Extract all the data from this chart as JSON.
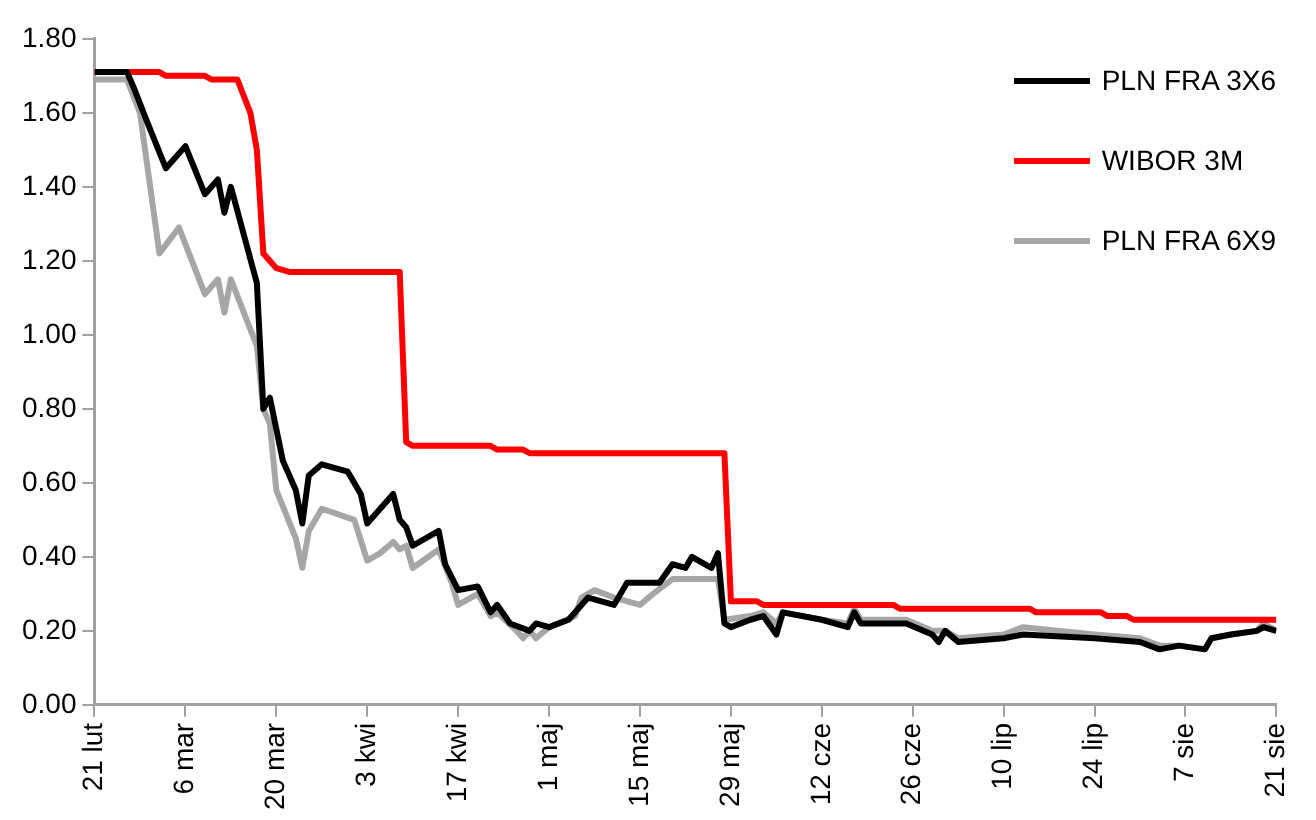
{
  "chart_data": {
    "type": "line",
    "xlim": [
      "--02-21",
      "--08-21"
    ],
    "xticks": [
      {
        "value": "--02-21",
        "label": "21 lut"
      },
      {
        "value": "--03-06",
        "label": "6 mar"
      },
      {
        "value": "--03-20",
        "label": "20 mar"
      },
      {
        "value": "--04-03",
        "label": "3 kwi"
      },
      {
        "value": "--04-17",
        "label": "17 kwi"
      },
      {
        "value": "--05-01",
        "label": "1 maj"
      },
      {
        "value": "--05-15",
        "label": "15 maj"
      },
      {
        "value": "--05-29",
        "label": "29 maj"
      },
      {
        "value": "--06-12",
        "label": "12 cze"
      },
      {
        "value": "--06-26",
        "label": "26 cze"
      },
      {
        "value": "--07-10",
        "label": "10 lip"
      },
      {
        "value": "--07-24",
        "label": "24 lip"
      },
      {
        "value": "--08-07",
        "label": "7 sie"
      },
      {
        "value": "--08-21",
        "label": "21 sie"
      }
    ],
    "ylim": [
      0,
      1.8
    ],
    "yticks": [
      {
        "value": 0,
        "label": "0.00"
      },
      {
        "value": 0.2,
        "label": "0.20"
      },
      {
        "value": 0.4,
        "label": "0.40"
      },
      {
        "value": 0.6,
        "label": "0.60"
      },
      {
        "value": 0.8,
        "label": "0.80"
      },
      {
        "value": 1.0,
        "label": "1.00"
      },
      {
        "value": 1.2,
        "label": "1.20"
      },
      {
        "value": 1.4,
        "label": "1.40"
      },
      {
        "value": 1.6,
        "label": "1.60"
      },
      {
        "value": 1.8,
        "label": "1.80"
      }
    ],
    "grid": false,
    "legend": "top right",
    "marker": "none",
    "line_style": "solid",
    "series": [
      {
        "name": "PLN FRA 3X6",
        "color": "#000000",
        "x": [
          "--02-21",
          "--02-26",
          "--02-27",
          "--02-29",
          "--03-03",
          "--03-06",
          "--03-09",
          "--03-11",
          "--03-12",
          "--03-13",
          "--03-17",
          "--03-18",
          "--03-19",
          "--03-21",
          "--03-23",
          "--03-24",
          "--03-25",
          "--03-27",
          "--03-31",
          "--04-02",
          "--04-03",
          "--04-07",
          "--04-08",
          "--04-09",
          "--04-10",
          "--04-14",
          "--04-15",
          "--04-17",
          "--04-20",
          "--04-22",
          "--04-23",
          "--04-25",
          "--04-28",
          "--04-29",
          "--05-01",
          "--05-04",
          "--05-07",
          "--05-11",
          "--05-13",
          "--05-18",
          "--05-20",
          "--05-22",
          "--05-23",
          "--05-26",
          "--05-27",
          "--05-28",
          "--05-29",
          "--06-01",
          "--06-03",
          "--06-05",
          "--06-06",
          "--06-12",
          "--06-16",
          "--06-17",
          "--06-18",
          "--06-25",
          "--06-29",
          "--06-30",
          "--07-01",
          "--07-03",
          "--07-10",
          "--07-13",
          "--07-24",
          "--07-31",
          "--08-03",
          "--08-06",
          "--08-10",
          "--08-11",
          "--08-14",
          "--08-18",
          "--08-19",
          "--08-21"
        ],
        "values": [
          1.71,
          1.71,
          1.67,
          1.58,
          1.45,
          1.51,
          1.38,
          1.42,
          1.33,
          1.4,
          1.14,
          0.8,
          0.83,
          0.66,
          0.58,
          0.49,
          0.62,
          0.65,
          0.63,
          0.57,
          0.49,
          0.57,
          0.5,
          0.48,
          0.43,
          0.47,
          0.38,
          0.31,
          0.32,
          0.25,
          0.27,
          0.22,
          0.2,
          0.22,
          0.21,
          0.23,
          0.29,
          0.27,
          0.33,
          0.33,
          0.38,
          0.37,
          0.4,
          0.37,
          0.41,
          0.22,
          0.21,
          0.23,
          0.24,
          0.19,
          0.25,
          0.23,
          0.21,
          0.25,
          0.22,
          0.22,
          0.19,
          0.17,
          0.2,
          0.17,
          0.18,
          0.19,
          0.18,
          0.17,
          0.15,
          0.16,
          0.15,
          0.18,
          0.19,
          0.2,
          0.21,
          0.2
        ]
      },
      {
        "name": "WIBOR 3M",
        "color": "#ff0000",
        "x": [
          "--02-21",
          "--03-02",
          "--03-03",
          "--03-09",
          "--03-10",
          "--03-14",
          "--03-16",
          "--03-17",
          "--03-18",
          "--03-20",
          "--03-22",
          "--04-08",
          "--04-09",
          "--04-10",
          "--04-22",
          "--04-23",
          "--04-27",
          "--04-28",
          "--05-28",
          "--05-29",
          "--06-02",
          "--06-03",
          "--06-23",
          "--06-24",
          "--07-14",
          "--07-15",
          "--07-25",
          "--07-26",
          "--07-29",
          "--07-30",
          "--08-21"
        ],
        "values": [
          1.71,
          1.71,
          1.7,
          1.7,
          1.69,
          1.69,
          1.6,
          1.5,
          1.22,
          1.18,
          1.17,
          1.17,
          0.71,
          0.7,
          0.7,
          0.69,
          0.69,
          0.68,
          0.68,
          0.28,
          0.28,
          0.27,
          0.27,
          0.26,
          0.26,
          0.25,
          0.25,
          0.24,
          0.24,
          0.23,
          0.23
        ]
      },
      {
        "name": "PLN FRA 6X9",
        "color": "#a6a6a6",
        "x": [
          "--02-21",
          "--02-26",
          "--02-28",
          "--03-02",
          "--03-05",
          "--03-09",
          "--03-11",
          "--03-12",
          "--03-13",
          "--03-17",
          "--03-18",
          "--03-19",
          "--03-20",
          "--03-23",
          "--03-24",
          "--03-25",
          "--03-27",
          "--04-01",
          "--04-03",
          "--04-05",
          "--04-07",
          "--04-08",
          "--04-09",
          "--04-10",
          "--04-14",
          "--04-16",
          "--04-17",
          "--04-20",
          "--04-22",
          "--04-23",
          "--04-26",
          "--04-27",
          "--04-28",
          "--04-29",
          "--05-01",
          "--05-05",
          "--05-06",
          "--05-08",
          "--05-11",
          "--05-15",
          "--05-17",
          "--05-20",
          "--05-27",
          "--05-28",
          "--06-01",
          "--06-03",
          "--06-05",
          "--06-06",
          "--06-12",
          "--06-16",
          "--06-17",
          "--06-18",
          "--06-25",
          "--06-29",
          "--07-01",
          "--07-03",
          "--07-10",
          "--07-13",
          "--07-24",
          "--07-31",
          "--08-03",
          "--08-06",
          "--08-10",
          "--08-11",
          "--08-14",
          "--08-18",
          "--08-19",
          "--08-21"
        ],
        "values": [
          1.69,
          1.69,
          1.6,
          1.22,
          1.29,
          1.11,
          1.15,
          1.06,
          1.15,
          0.97,
          0.8,
          0.76,
          0.58,
          0.45,
          0.37,
          0.47,
          0.53,
          0.5,
          0.39,
          0.41,
          0.44,
          0.42,
          0.43,
          0.37,
          0.42,
          0.33,
          0.27,
          0.3,
          0.24,
          0.25,
          0.2,
          0.18,
          0.2,
          0.18,
          0.21,
          0.24,
          0.29,
          0.31,
          0.29,
          0.27,
          0.3,
          0.34,
          0.34,
          0.23,
          0.24,
          0.25,
          0.22,
          0.25,
          0.23,
          0.22,
          0.26,
          0.23,
          0.23,
          0.2,
          0.2,
          0.18,
          0.19,
          0.21,
          0.19,
          0.18,
          0.16,
          0.16,
          0.15,
          0.18,
          0.19,
          0.2,
          0.22,
          0.2
        ]
      }
    ]
  }
}
